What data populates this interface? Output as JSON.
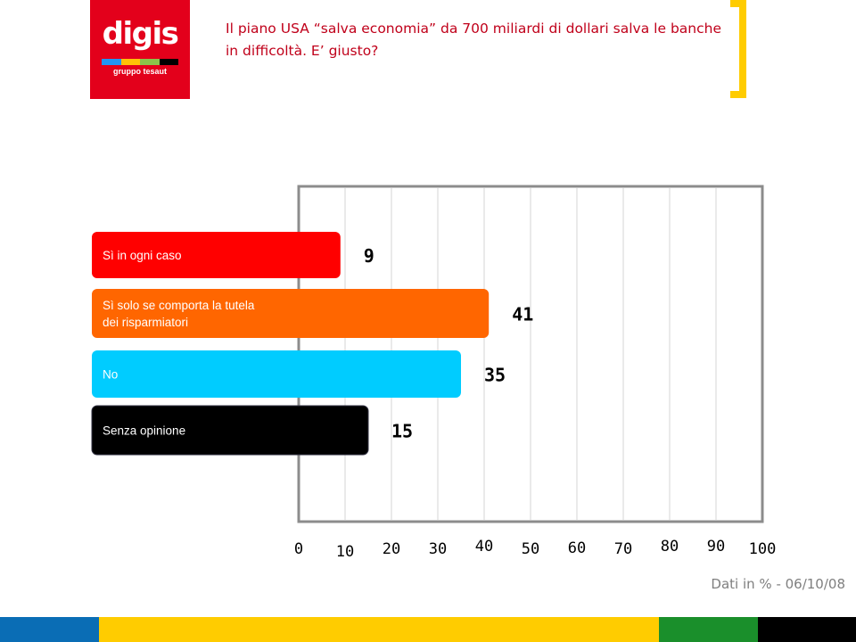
{
  "logo": {
    "word": "digis",
    "sub": "gruppo tesaut",
    "stripe": [
      "#2196f3",
      "#ffc107",
      "#8bc34a",
      "#000000"
    ]
  },
  "header": {
    "title": "Il piano USA “salva economia” da 700 miliardi di dollari salva le banche in difficoltà. E’ giusto?"
  },
  "footer": {
    "note": "Dati in % - 06/10/08",
    "band_colors": [
      "#0a6db5",
      "#ffcc00",
      "#1a8f2b",
      "#000000"
    ]
  },
  "chart_data": {
    "type": "bar",
    "orientation": "horizontal",
    "categories": [
      "Sì in ogni caso",
      "Sì solo se comporta la tutela dei risparmiatori",
      "No",
      "Senza opinione"
    ],
    "values": [
      9,
      41,
      35,
      15
    ],
    "value_labels": [
      "9",
      "41",
      "35",
      "15"
    ],
    "colors": [
      "#ff0000",
      "#ff6600",
      "#00ccff",
      "#000000"
    ],
    "xlim": [
      0,
      100
    ],
    "xticks": [
      "0",
      "10",
      "20",
      "30",
      "40",
      "50",
      "60",
      "70",
      "80",
      "90",
      "100"
    ],
    "grid": true
  }
}
